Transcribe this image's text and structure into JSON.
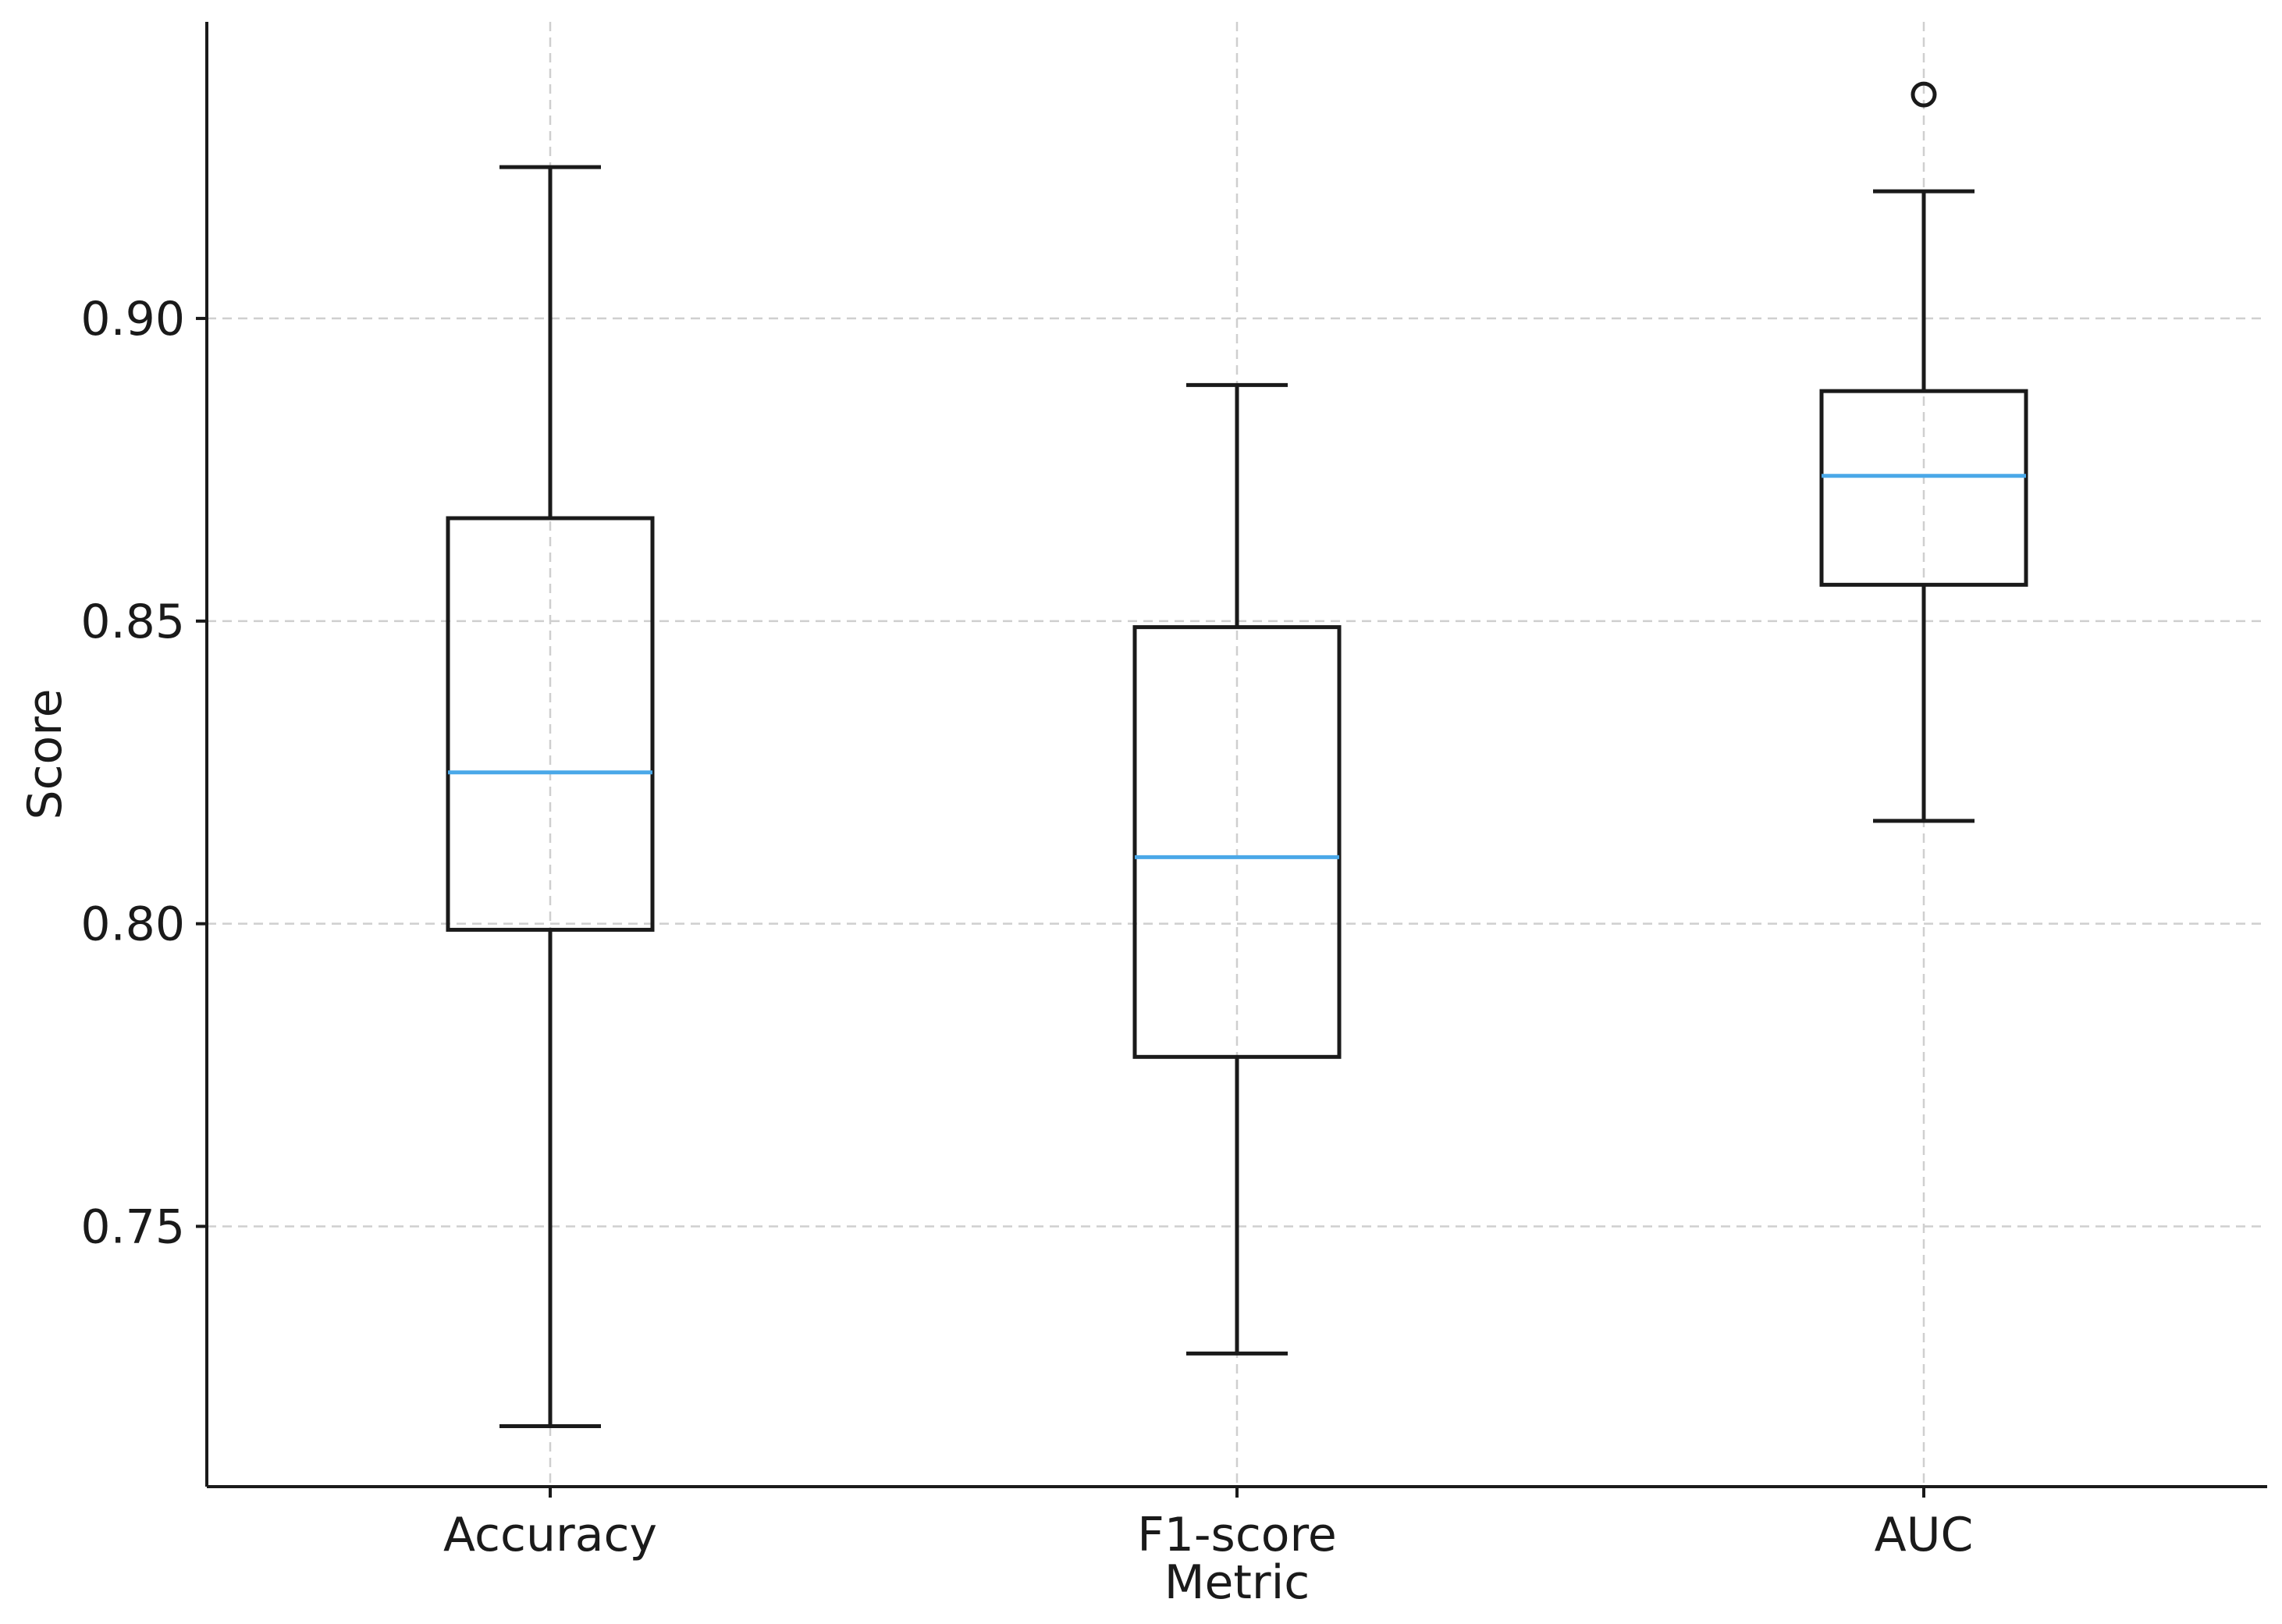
{
  "chart_data": {
    "type": "boxplot",
    "title": "",
    "xlabel": "Metric",
    "ylabel": "Score",
    "categories": [
      "Accuracy",
      "F1-score",
      "AUC"
    ],
    "ylim": [
      0.707,
      0.949
    ],
    "yticks": [
      0.75,
      0.8,
      0.85,
      0.9
    ],
    "ytick_labels": [
      "0.75",
      "0.80",
      "0.85",
      "0.90"
    ],
    "grid": true,
    "boxes": [
      {
        "category": "Accuracy",
        "whisker_low": 0.717,
        "q1": 0.799,
        "median": 0.825,
        "q3": 0.867,
        "whisker_high": 0.925,
        "fliers": []
      },
      {
        "category": "F1-score",
        "whisker_low": 0.729,
        "q1": 0.778,
        "median": 0.811,
        "q3": 0.849,
        "whisker_high": 0.889,
        "fliers": []
      },
      {
        "category": "AUC",
        "whisker_low": 0.817,
        "q1": 0.856,
        "median": 0.874,
        "q3": 0.888,
        "whisker_high": 0.921,
        "fliers": [
          0.937
        ]
      }
    ],
    "colors": {
      "box": "#1a1a1a",
      "median": "#4aa8e8",
      "grid": "#cfcfcf"
    }
  }
}
